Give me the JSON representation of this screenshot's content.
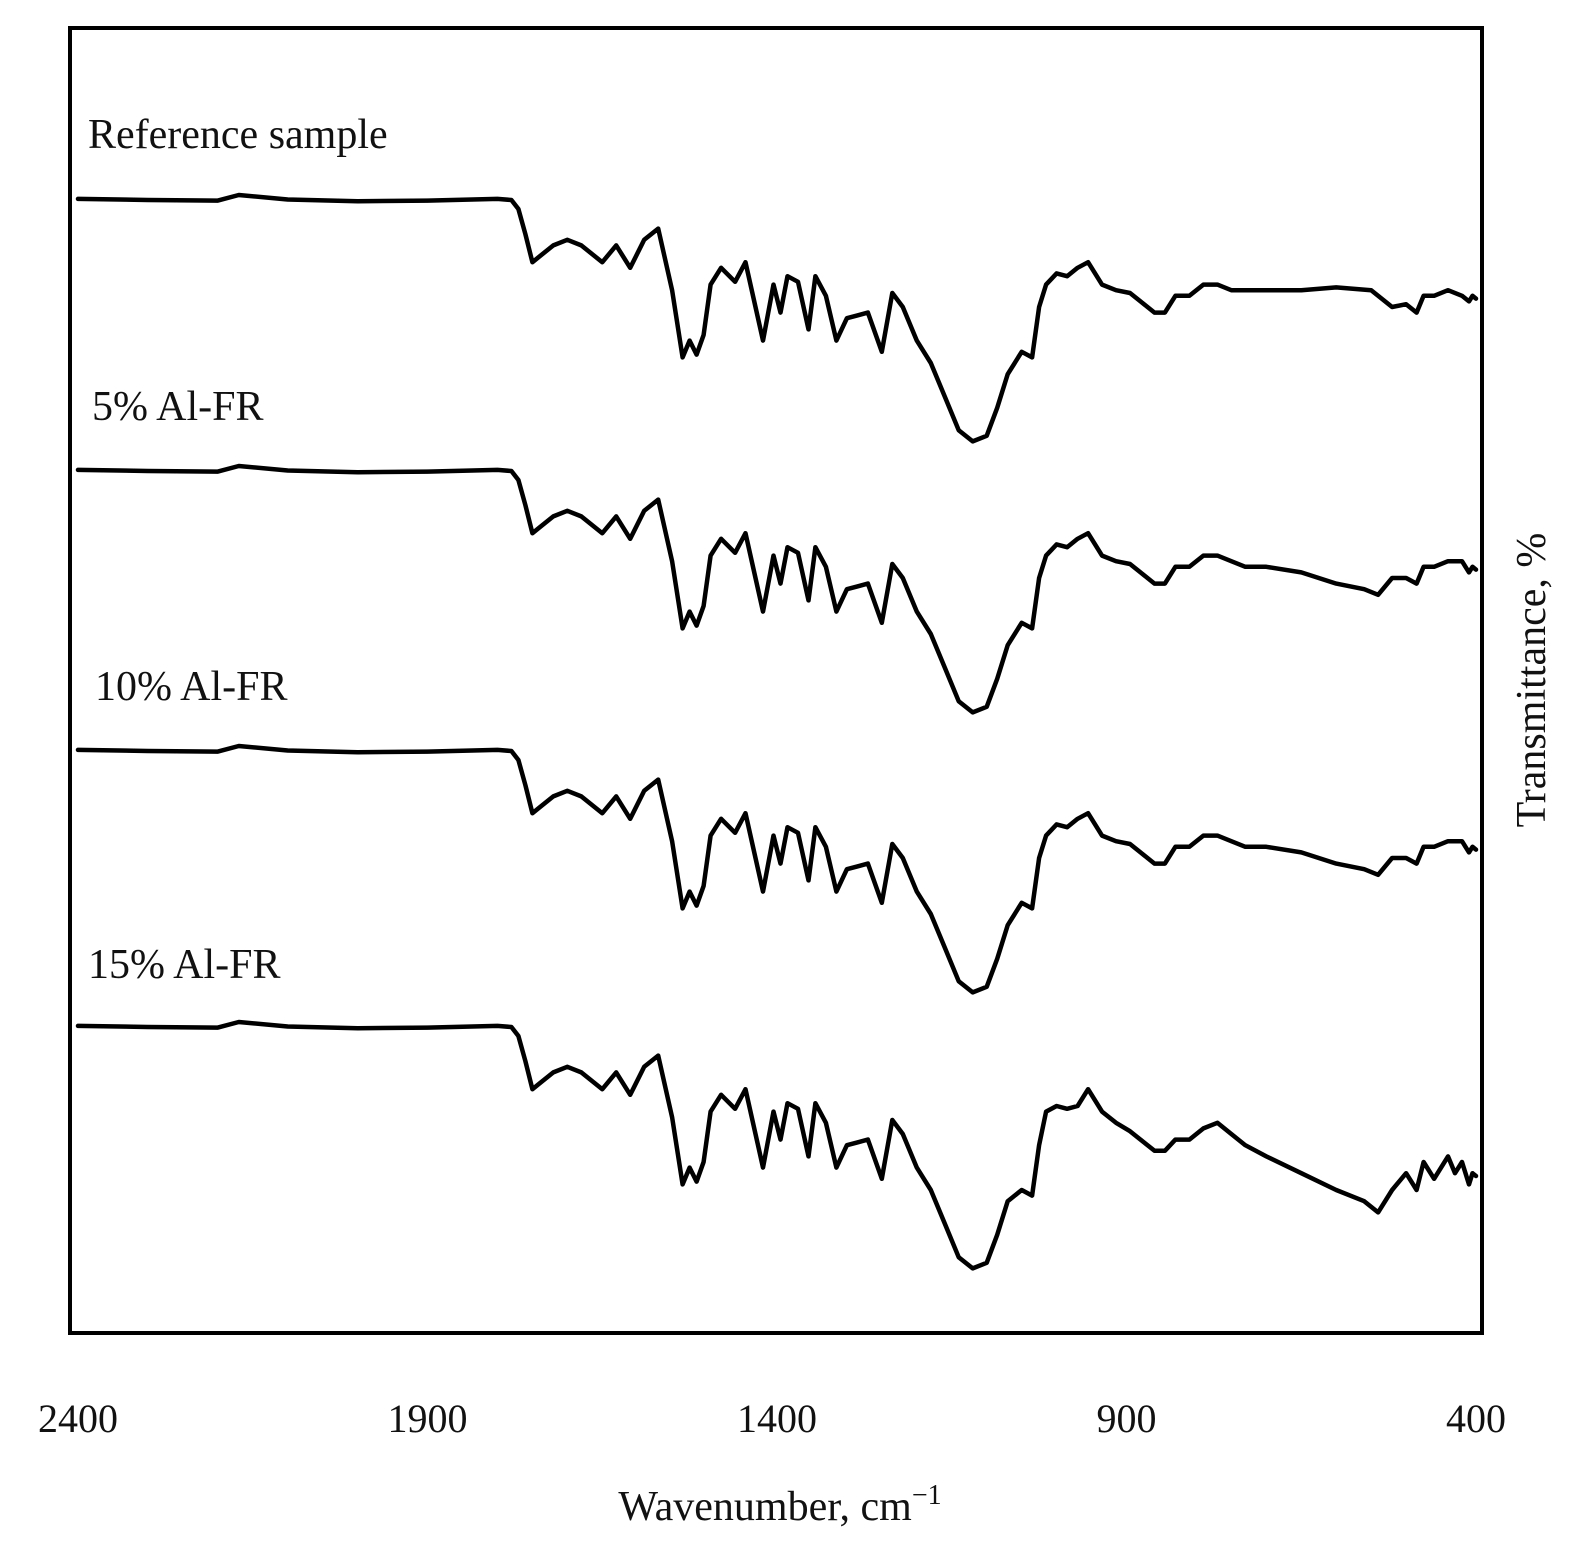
{
  "chart_data": {
    "type": "line",
    "title": "",
    "xlabel_main": "Wavenumber, cm",
    "xlabel_sup": "−1",
    "ylabel": "Transmittance, %",
    "xlim": [
      2400,
      400
    ],
    "x_reversed": true,
    "x_ticks": [
      "2400",
      "1900",
      "1400",
      "900",
      "400"
    ],
    "x_tick_values": [
      2400,
      1900,
      1400,
      900,
      400
    ],
    "y_ticks": [],
    "grid": false,
    "legend": "none",
    "stacked_offset": true,
    "line_color": "#000000",
    "series": [
      {
        "name": "Reference sample",
        "offset": 0,
        "x": [
          2400,
          2300,
          2200,
          2170,
          2100,
          2000,
          1900,
          1800,
          1780,
          1770,
          1760,
          1750,
          1740,
          1720,
          1700,
          1680,
          1660,
          1650,
          1630,
          1610,
          1590,
          1570,
          1550,
          1535,
          1525,
          1515,
          1505,
          1495,
          1480,
          1460,
          1445,
          1420,
          1405,
          1395,
          1385,
          1370,
          1355,
          1345,
          1330,
          1315,
          1300,
          1285,
          1270,
          1250,
          1235,
          1220,
          1200,
          1180,
          1160,
          1140,
          1120,
          1100,
          1085,
          1070,
          1050,
          1035,
          1025,
          1015,
          1000,
          985,
          970,
          955,
          935,
          915,
          895,
          880,
          860,
          845,
          830,
          810,
          790,
          770,
          750,
          730,
          700,
          650,
          600,
          550,
          520,
          500,
          485,
          475,
          460,
          440,
          420,
          410,
          405,
          400
        ],
        "y": [
          99.3,
          99.1,
          99.0,
          100.0,
          99.2,
          98.9,
          99.0,
          99.3,
          99.1,
          97.5,
          93.0,
          88.0,
          89.0,
          91.0,
          92.0,
          91.0,
          89.0,
          88.0,
          91.0,
          87.0,
          92.0,
          94.0,
          83.0,
          71.0,
          74.0,
          71.5,
          75.0,
          84.0,
          87.0,
          84.5,
          88.0,
          74.0,
          84.0,
          79.0,
          85.5,
          84.5,
          76.0,
          85.5,
          82.0,
          74.0,
          78.0,
          78.5,
          79.0,
          72.0,
          82.5,
          80.0,
          74.0,
          70.0,
          64.0,
          58.0,
          56.0,
          57.0,
          62.0,
          68.0,
          72.0,
          71.0,
          80.0,
          84.0,
          86.0,
          85.5,
          87.0,
          88.0,
          84.0,
          83.0,
          82.5,
          81.0,
          79.0,
          79.0,
          82.0,
          82.0,
          84.0,
          84.0,
          83.0,
          83.0,
          83.0,
          83.0,
          83.5,
          83.0,
          80.0,
          80.5,
          79.0,
          82.0,
          82.0,
          83.0,
          82.0,
          81.0,
          82.0,
          81.5
        ]
      },
      {
        "name": "5% Al-FR",
        "offset": 0,
        "x": [
          2400,
          2300,
          2200,
          2170,
          2100,
          2000,
          1900,
          1800,
          1780,
          1770,
          1760,
          1750,
          1740,
          1720,
          1700,
          1680,
          1660,
          1650,
          1630,
          1610,
          1590,
          1570,
          1550,
          1535,
          1525,
          1515,
          1505,
          1495,
          1480,
          1460,
          1445,
          1420,
          1405,
          1395,
          1385,
          1370,
          1355,
          1345,
          1330,
          1315,
          1300,
          1285,
          1270,
          1250,
          1235,
          1220,
          1200,
          1180,
          1160,
          1140,
          1120,
          1100,
          1085,
          1070,
          1050,
          1035,
          1025,
          1015,
          1000,
          985,
          970,
          955,
          935,
          915,
          895,
          880,
          860,
          845,
          830,
          810,
          790,
          770,
          750,
          730,
          700,
          650,
          600,
          560,
          540,
          520,
          500,
          485,
          475,
          460,
          440,
          430,
          420,
          410,
          405,
          400
        ],
        "y": [
          99.3,
          99.1,
          99.0,
          100.0,
          99.2,
          98.9,
          99.0,
          99.3,
          99.1,
          97.5,
          93.0,
          88.0,
          89.0,
          91.0,
          92.0,
          91.0,
          89.0,
          88.0,
          91.0,
          87.0,
          92.0,
          94.0,
          83.0,
          71.0,
          74.0,
          71.5,
          75.0,
          84.0,
          87.0,
          84.5,
          88.0,
          74.0,
          84.0,
          79.0,
          85.5,
          84.5,
          76.0,
          85.5,
          82.0,
          74.0,
          78.0,
          78.5,
          79.0,
          72.0,
          82.5,
          80.0,
          74.0,
          70.0,
          64.0,
          58.0,
          56.0,
          57.0,
          62.0,
          68.0,
          72.0,
          71.0,
          80.0,
          84.0,
          86.0,
          85.5,
          87.0,
          88.0,
          84.0,
          83.0,
          82.5,
          81.0,
          79.0,
          79.0,
          82.0,
          82.0,
          84.0,
          84.0,
          83.0,
          82.0,
          82.0,
          81.0,
          79.0,
          78.0,
          77.0,
          80.0,
          80.0,
          79.0,
          82.0,
          82.0,
          83.0,
          83.0,
          83.0,
          81.0,
          82.0,
          81.5
        ]
      },
      {
        "name": "10% Al-FR",
        "offset": 0,
        "x": [
          2400,
          2300,
          2200,
          2170,
          2100,
          2000,
          1900,
          1800,
          1780,
          1770,
          1760,
          1750,
          1740,
          1720,
          1700,
          1680,
          1660,
          1650,
          1630,
          1610,
          1590,
          1570,
          1550,
          1535,
          1525,
          1515,
          1505,
          1495,
          1480,
          1460,
          1445,
          1420,
          1405,
          1395,
          1385,
          1370,
          1355,
          1345,
          1330,
          1315,
          1300,
          1285,
          1270,
          1250,
          1235,
          1220,
          1200,
          1180,
          1160,
          1140,
          1120,
          1100,
          1085,
          1070,
          1050,
          1035,
          1025,
          1015,
          1000,
          985,
          970,
          955,
          935,
          915,
          895,
          880,
          860,
          845,
          830,
          810,
          790,
          770,
          750,
          730,
          700,
          650,
          600,
          560,
          540,
          520,
          500,
          485,
          475,
          460,
          440,
          430,
          420,
          410,
          405,
          400
        ],
        "y": [
          99.3,
          99.1,
          99.0,
          100.0,
          99.2,
          98.9,
          99.0,
          99.3,
          99.1,
          97.5,
          93.0,
          88.0,
          89.0,
          91.0,
          92.0,
          91.0,
          89.0,
          88.0,
          91.0,
          87.0,
          92.0,
          94.0,
          83.0,
          71.0,
          74.0,
          71.5,
          75.0,
          84.0,
          87.0,
          84.5,
          88.0,
          74.0,
          84.0,
          79.0,
          85.5,
          84.5,
          76.0,
          85.5,
          82.0,
          74.0,
          78.0,
          78.5,
          79.0,
          72.0,
          82.5,
          80.0,
          74.0,
          70.0,
          64.0,
          58.0,
          56.0,
          57.0,
          62.0,
          68.0,
          72.0,
          71.0,
          80.0,
          84.0,
          86.0,
          85.5,
          87.0,
          88.0,
          84.0,
          83.0,
          82.5,
          81.0,
          79.0,
          79.0,
          82.0,
          82.0,
          84.0,
          84.0,
          83.0,
          82.0,
          82.0,
          81.0,
          79.0,
          78.0,
          77.0,
          80.0,
          80.0,
          79.0,
          82.0,
          82.0,
          83.0,
          83.0,
          83.0,
          81.0,
          82.0,
          81.5
        ]
      },
      {
        "name": "15% Al-FR",
        "offset": 0,
        "x": [
          2400,
          2300,
          2200,
          2170,
          2100,
          2000,
          1900,
          1800,
          1780,
          1770,
          1760,
          1750,
          1740,
          1720,
          1700,
          1680,
          1660,
          1650,
          1630,
          1610,
          1590,
          1570,
          1550,
          1535,
          1525,
          1515,
          1505,
          1495,
          1480,
          1460,
          1445,
          1420,
          1405,
          1395,
          1385,
          1370,
          1355,
          1345,
          1330,
          1315,
          1300,
          1285,
          1270,
          1250,
          1235,
          1220,
          1200,
          1180,
          1160,
          1140,
          1120,
          1100,
          1085,
          1070,
          1050,
          1035,
          1025,
          1015,
          1000,
          985,
          970,
          955,
          935,
          915,
          895,
          880,
          860,
          845,
          830,
          810,
          790,
          770,
          750,
          730,
          700,
          650,
          600,
          560,
          540,
          520,
          500,
          485,
          475,
          460,
          440,
          430,
          420,
          410,
          405,
          400
        ],
        "y": [
          99.3,
          99.1,
          99.0,
          100.0,
          99.2,
          98.9,
          99.0,
          99.3,
          99.1,
          97.5,
          93.0,
          88.0,
          89.0,
          91.0,
          92.0,
          91.0,
          89.0,
          88.0,
          91.0,
          87.0,
          92.0,
          94.0,
          83.0,
          71.0,
          74.0,
          71.5,
          75.0,
          84.0,
          87.0,
          84.5,
          88.0,
          74.0,
          84.0,
          79.0,
          85.5,
          84.5,
          76.0,
          85.5,
          82.0,
          74.0,
          78.0,
          78.5,
          79.0,
          72.0,
          82.5,
          80.0,
          74.0,
          70.0,
          64.0,
          58.0,
          56.0,
          57.0,
          62.0,
          68.0,
          70.0,
          69.0,
          78.0,
          84.0,
          85.0,
          84.5,
          85.0,
          88.0,
          84.0,
          82.0,
          80.5,
          79.0,
          77.0,
          77.0,
          79.0,
          79.0,
          81.0,
          82.0,
          80.0,
          78.0,
          76.0,
          73.0,
          70.0,
          68.0,
          66.0,
          70.0,
          73.0,
          70.0,
          75.0,
          72.0,
          76.0,
          73.0,
          75.0,
          71.0,
          73.0,
          72.5
        ]
      }
    ]
  }
}
